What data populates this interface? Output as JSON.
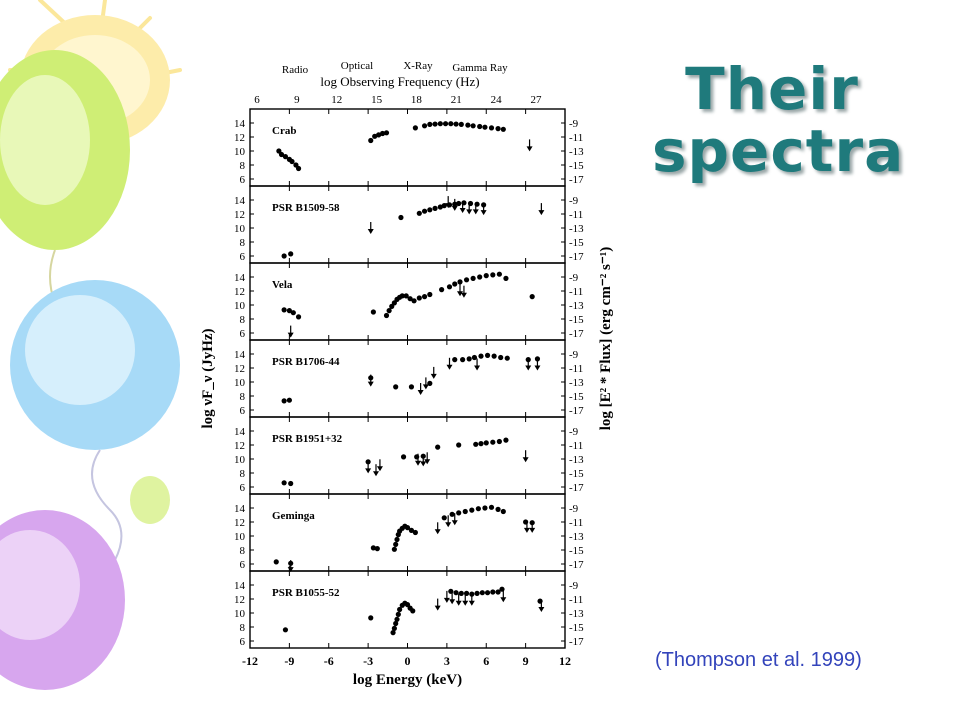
{
  "slide": {
    "title": "Their spectra",
    "citation": "(Thompson et al. 1999)",
    "colors": {
      "title": "#1f7a7c",
      "citation": "#3344bb",
      "balloon_green": "#d4f07a",
      "balloon_blue": "#a9dcf7",
      "balloon_yellow": "#fde9a1",
      "balloon_purple": "#d9a9ef"
    }
  },
  "chart_data": {
    "type": "scatter",
    "top_labels": {
      "bands": [
        "Radio",
        "Optical",
        "X-Ray",
        "Gamma Ray"
      ],
      "title": "log Observing Frequency (Hz)"
    },
    "top_axis_ticks": [
      6,
      9,
      12,
      15,
      18,
      21,
      24,
      27
    ],
    "xlabel": "log Energy (keV)",
    "xlim": [
      -12,
      12
    ],
    "x_ticks": [
      -12,
      -9,
      -6,
      -3,
      0,
      3,
      6,
      9,
      12
    ],
    "ylabel_left": "log νF_ν (JyHz)",
    "ylabel_right": "log [E² * Flux] (erg cm⁻² s⁻¹)",
    "ylim": [
      5,
      16
    ],
    "y_ticks_left": [
      6,
      8,
      10,
      12,
      14
    ],
    "y_ticks_right": [
      -17,
      -15,
      -13,
      -11,
      -9
    ],
    "panels": [
      {
        "name": "Crab",
        "points": [
          [
            -9.8,
            10
          ],
          [
            -9.6,
            9.5
          ],
          [
            -9.3,
            9.2
          ],
          [
            -9,
            8.8
          ],
          [
            -8.8,
            8.5
          ],
          [
            -8.5,
            8.0
          ],
          [
            -8.3,
            7.5
          ],
          [
            -2.8,
            11.5
          ],
          [
            -2.5,
            12.1
          ],
          [
            -2.2,
            12.3
          ],
          [
            -1.9,
            12.5
          ],
          [
            -1.6,
            12.6
          ],
          [
            0.6,
            13.3
          ],
          [
            1.3,
            13.6
          ],
          [
            1.7,
            13.8
          ],
          [
            2.1,
            13.85
          ],
          [
            2.5,
            13.9
          ],
          [
            2.9,
            13.9
          ],
          [
            3.3,
            13.9
          ],
          [
            3.7,
            13.85
          ],
          [
            4.1,
            13.8
          ],
          [
            4.6,
            13.7
          ],
          [
            5.0,
            13.6
          ],
          [
            5.5,
            13.5
          ],
          [
            5.9,
            13.4
          ],
          [
            6.4,
            13.3
          ],
          [
            6.9,
            13.2
          ],
          [
            7.3,
            13.1
          ]
        ],
        "arrows": [
          [
            9.3,
            10.8
          ]
        ]
      },
      {
        "name": "PSR B1509-58",
        "points": [
          [
            -9.4,
            6.0
          ],
          [
            -8.9,
            6.3
          ],
          [
            -0.5,
            11.5
          ],
          [
            0.9,
            12.1
          ],
          [
            1.3,
            12.4
          ],
          [
            1.7,
            12.6
          ],
          [
            2.1,
            12.8
          ],
          [
            2.5,
            13.0
          ],
          [
            2.8,
            13.2
          ],
          [
            3.2,
            13.3
          ],
          [
            3.6,
            13.4
          ],
          [
            3.9,
            13.5
          ],
          [
            4.3,
            13.6
          ],
          [
            4.8,
            13.5
          ],
          [
            5.3,
            13.4
          ],
          [
            5.8,
            13.3
          ]
        ],
        "arrows": [
          [
            -2.8,
            10.0
          ],
          [
            3.1,
            13.7
          ],
          [
            3.6,
            13.3
          ],
          [
            4.2,
            13.0
          ],
          [
            4.7,
            12.8
          ],
          [
            5.2,
            12.8
          ],
          [
            5.8,
            12.7
          ],
          [
            10.2,
            12.7
          ]
        ]
      },
      {
        "name": "Vela",
        "points": [
          [
            -9.4,
            9.3
          ],
          [
            -9.0,
            9.2
          ],
          [
            -8.7,
            8.9
          ],
          [
            -8.3,
            8.3
          ],
          [
            -2.6,
            9.0
          ],
          [
            -1.6,
            8.5
          ],
          [
            -1.4,
            9.2
          ],
          [
            -1.2,
            9.8
          ],
          [
            -1.0,
            10.3
          ],
          [
            -0.8,
            10.8
          ],
          [
            -0.6,
            11.1
          ],
          [
            -0.4,
            11.3
          ],
          [
            -0.1,
            11.3
          ],
          [
            0.2,
            10.9
          ],
          [
            0.5,
            10.6
          ],
          [
            0.9,
            11.0
          ],
          [
            1.3,
            11.2
          ],
          [
            1.7,
            11.5
          ],
          [
            2.6,
            12.2
          ],
          [
            3.2,
            12.6
          ],
          [
            3.6,
            13.0
          ],
          [
            4.0,
            13.3
          ],
          [
            4.5,
            13.6
          ],
          [
            5.0,
            13.8
          ],
          [
            5.5,
            14.0
          ],
          [
            6.0,
            14.2
          ],
          [
            6.5,
            14.3
          ],
          [
            7.0,
            14.4
          ],
          [
            7.5,
            13.8
          ],
          [
            9.5,
            11.2
          ]
        ],
        "arrows": [
          [
            -8.9,
            6.2
          ],
          [
            4.0,
            12.1
          ],
          [
            4.3,
            11.9
          ]
        ]
      },
      {
        "name": "PSR B1706-44",
        "points": [
          [
            -9.4,
            7.3
          ],
          [
            -9.0,
            7.4
          ],
          [
            -2.8,
            10.6
          ],
          [
            -0.9,
            9.3
          ],
          [
            0.3,
            9.3
          ],
          [
            1.7,
            9.8
          ],
          [
            3.6,
            13.2
          ],
          [
            4.2,
            13.2
          ],
          [
            4.7,
            13.3
          ],
          [
            5.1,
            13.5
          ],
          [
            5.6,
            13.7
          ],
          [
            6.1,
            13.8
          ],
          [
            6.6,
            13.7
          ],
          [
            7.1,
            13.5
          ],
          [
            7.6,
            13.4
          ],
          [
            9.2,
            13.2
          ],
          [
            9.9,
            13.3
          ]
        ],
        "arrows": [
          [
            -2.8,
            10.2
          ],
          [
            1.0,
            9.0
          ],
          [
            1.4,
            9.8
          ],
          [
            2.0,
            11.3
          ],
          [
            3.2,
            12.6
          ],
          [
            5.3,
            12.5
          ],
          [
            9.2,
            12.5
          ],
          [
            9.9,
            12.5
          ]
        ]
      },
      {
        "name": "PSR B1951+32",
        "points": [
          [
            -9.4,
            6.6
          ],
          [
            -8.9,
            6.5
          ],
          [
            -3.0,
            9.6
          ],
          [
            -0.3,
            10.3
          ],
          [
            0.7,
            10.3
          ],
          [
            1.2,
            10.4
          ],
          [
            2.3,
            11.7
          ],
          [
            3.9,
            12.0
          ],
          [
            5.2,
            12.1
          ],
          [
            5.6,
            12.2
          ],
          [
            6.0,
            12.3
          ],
          [
            6.5,
            12.4
          ],
          [
            7.0,
            12.5
          ],
          [
            7.5,
            12.7
          ]
        ],
        "arrows": [
          [
            -3.0,
            8.8
          ],
          [
            -2.4,
            8.4
          ],
          [
            -2.1,
            9.1
          ],
          [
            0.8,
            9.9
          ],
          [
            1.2,
            9.8
          ],
          [
            1.5,
            10.1
          ],
          [
            9.0,
            10.4
          ]
        ]
      },
      {
        "name": "Geminga",
        "points": [
          [
            -10.0,
            6.3
          ],
          [
            -8.9,
            6.1
          ],
          [
            -2.6,
            8.3
          ],
          [
            -2.3,
            8.2
          ],
          [
            -1.0,
            8.1
          ],
          [
            -0.9,
            8.8
          ],
          [
            -0.8,
            9.5
          ],
          [
            -0.7,
            10.2
          ],
          [
            -0.6,
            10.7
          ],
          [
            -0.4,
            11.1
          ],
          [
            -0.2,
            11.4
          ],
          [
            0.0,
            11.2
          ],
          [
            0.3,
            10.8
          ],
          [
            0.6,
            10.5
          ],
          [
            2.8,
            12.6
          ],
          [
            3.4,
            13.1
          ],
          [
            3.9,
            13.3
          ],
          [
            4.4,
            13.5
          ],
          [
            4.9,
            13.7
          ],
          [
            5.4,
            13.9
          ],
          [
            5.9,
            14.0
          ],
          [
            6.4,
            14.1
          ],
          [
            6.9,
            13.8
          ],
          [
            7.3,
            13.5
          ],
          [
            9.0,
            12.0
          ],
          [
            9.5,
            11.9
          ]
        ],
        "arrows": [
          [
            -8.9,
            5.7
          ],
          [
            2.3,
            11.1
          ],
          [
            3.1,
            12.1
          ],
          [
            3.6,
            12.4
          ],
          [
            9.1,
            11.3
          ],
          [
            9.5,
            11.3
          ]
        ]
      },
      {
        "name": "PSR B1055-52",
        "points": [
          [
            -9.3,
            7.6
          ],
          [
            -2.8,
            9.3
          ],
          [
            -1.1,
            7.2
          ],
          [
            -1.0,
            7.8
          ],
          [
            -0.9,
            8.5
          ],
          [
            -0.8,
            9.1
          ],
          [
            -0.7,
            9.8
          ],
          [
            -0.6,
            10.5
          ],
          [
            -0.4,
            11.1
          ],
          [
            -0.2,
            11.4
          ],
          [
            0.0,
            11.2
          ],
          [
            0.2,
            10.7
          ],
          [
            0.4,
            10.3
          ],
          [
            3.3,
            13.1
          ],
          [
            3.7,
            12.9
          ],
          [
            4.1,
            12.8
          ],
          [
            4.5,
            12.8
          ],
          [
            4.9,
            12.7
          ],
          [
            5.3,
            12.8
          ],
          [
            5.7,
            12.9
          ],
          [
            6.1,
            12.9
          ],
          [
            6.5,
            13.0
          ],
          [
            6.9,
            13.0
          ],
          [
            7.2,
            13.4
          ],
          [
            10.1,
            11.7
          ]
        ],
        "arrows": [
          [
            2.3,
            11.2
          ],
          [
            3.0,
            12.3
          ],
          [
            3.4,
            12.1
          ],
          [
            3.9,
            11.9
          ],
          [
            4.4,
            11.9
          ],
          [
            4.9,
            11.9
          ],
          [
            7.3,
            12.4
          ],
          [
            10.2,
            11.0
          ]
        ]
      }
    ]
  }
}
